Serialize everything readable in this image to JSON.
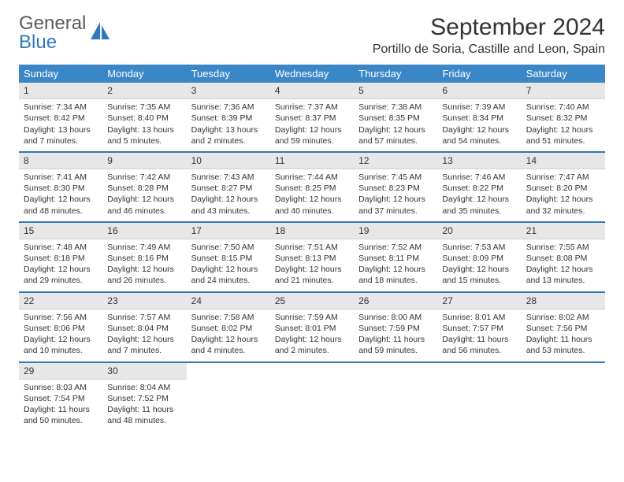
{
  "brand": {
    "name1": "General",
    "name2": "Blue"
  },
  "title": "September 2024",
  "location": "Portillo de Soria, Castille and Leon, Spain",
  "columns": [
    "Sunday",
    "Monday",
    "Tuesday",
    "Wednesday",
    "Thursday",
    "Friday",
    "Saturday"
  ],
  "colors": {
    "header_bg": "#3a87c7",
    "header_fg": "#ffffff",
    "daynum_bg": "#e7e7e7",
    "week_sep": "#2f78bd",
    "text": "#333333",
    "brand_blue": "#2f78bd",
    "brand_gray": "#5a5a5a"
  },
  "weeks": [
    [
      {
        "n": "1",
        "sunrise": "Sunrise: 7:34 AM",
        "sunset": "Sunset: 8:42 PM",
        "daylight": "Daylight: 13 hours and 7 minutes."
      },
      {
        "n": "2",
        "sunrise": "Sunrise: 7:35 AM",
        "sunset": "Sunset: 8:40 PM",
        "daylight": "Daylight: 13 hours and 5 minutes."
      },
      {
        "n": "3",
        "sunrise": "Sunrise: 7:36 AM",
        "sunset": "Sunset: 8:39 PM",
        "daylight": "Daylight: 13 hours and 2 minutes."
      },
      {
        "n": "4",
        "sunrise": "Sunrise: 7:37 AM",
        "sunset": "Sunset: 8:37 PM",
        "daylight": "Daylight: 12 hours and 59 minutes."
      },
      {
        "n": "5",
        "sunrise": "Sunrise: 7:38 AM",
        "sunset": "Sunset: 8:35 PM",
        "daylight": "Daylight: 12 hours and 57 minutes."
      },
      {
        "n": "6",
        "sunrise": "Sunrise: 7:39 AM",
        "sunset": "Sunset: 8:34 PM",
        "daylight": "Daylight: 12 hours and 54 minutes."
      },
      {
        "n": "7",
        "sunrise": "Sunrise: 7:40 AM",
        "sunset": "Sunset: 8:32 PM",
        "daylight": "Daylight: 12 hours and 51 minutes."
      }
    ],
    [
      {
        "n": "8",
        "sunrise": "Sunrise: 7:41 AM",
        "sunset": "Sunset: 8:30 PM",
        "daylight": "Daylight: 12 hours and 48 minutes."
      },
      {
        "n": "9",
        "sunrise": "Sunrise: 7:42 AM",
        "sunset": "Sunset: 8:28 PM",
        "daylight": "Daylight: 12 hours and 46 minutes."
      },
      {
        "n": "10",
        "sunrise": "Sunrise: 7:43 AM",
        "sunset": "Sunset: 8:27 PM",
        "daylight": "Daylight: 12 hours and 43 minutes."
      },
      {
        "n": "11",
        "sunrise": "Sunrise: 7:44 AM",
        "sunset": "Sunset: 8:25 PM",
        "daylight": "Daylight: 12 hours and 40 minutes."
      },
      {
        "n": "12",
        "sunrise": "Sunrise: 7:45 AM",
        "sunset": "Sunset: 8:23 PM",
        "daylight": "Daylight: 12 hours and 37 minutes."
      },
      {
        "n": "13",
        "sunrise": "Sunrise: 7:46 AM",
        "sunset": "Sunset: 8:22 PM",
        "daylight": "Daylight: 12 hours and 35 minutes."
      },
      {
        "n": "14",
        "sunrise": "Sunrise: 7:47 AM",
        "sunset": "Sunset: 8:20 PM",
        "daylight": "Daylight: 12 hours and 32 minutes."
      }
    ],
    [
      {
        "n": "15",
        "sunrise": "Sunrise: 7:48 AM",
        "sunset": "Sunset: 8:18 PM",
        "daylight": "Daylight: 12 hours and 29 minutes."
      },
      {
        "n": "16",
        "sunrise": "Sunrise: 7:49 AM",
        "sunset": "Sunset: 8:16 PM",
        "daylight": "Daylight: 12 hours and 26 minutes."
      },
      {
        "n": "17",
        "sunrise": "Sunrise: 7:50 AM",
        "sunset": "Sunset: 8:15 PM",
        "daylight": "Daylight: 12 hours and 24 minutes."
      },
      {
        "n": "18",
        "sunrise": "Sunrise: 7:51 AM",
        "sunset": "Sunset: 8:13 PM",
        "daylight": "Daylight: 12 hours and 21 minutes."
      },
      {
        "n": "19",
        "sunrise": "Sunrise: 7:52 AM",
        "sunset": "Sunset: 8:11 PM",
        "daylight": "Daylight: 12 hours and 18 minutes."
      },
      {
        "n": "20",
        "sunrise": "Sunrise: 7:53 AM",
        "sunset": "Sunset: 8:09 PM",
        "daylight": "Daylight: 12 hours and 15 minutes."
      },
      {
        "n": "21",
        "sunrise": "Sunrise: 7:55 AM",
        "sunset": "Sunset: 8:08 PM",
        "daylight": "Daylight: 12 hours and 13 minutes."
      }
    ],
    [
      {
        "n": "22",
        "sunrise": "Sunrise: 7:56 AM",
        "sunset": "Sunset: 8:06 PM",
        "daylight": "Daylight: 12 hours and 10 minutes."
      },
      {
        "n": "23",
        "sunrise": "Sunrise: 7:57 AM",
        "sunset": "Sunset: 8:04 PM",
        "daylight": "Daylight: 12 hours and 7 minutes."
      },
      {
        "n": "24",
        "sunrise": "Sunrise: 7:58 AM",
        "sunset": "Sunset: 8:02 PM",
        "daylight": "Daylight: 12 hours and 4 minutes."
      },
      {
        "n": "25",
        "sunrise": "Sunrise: 7:59 AM",
        "sunset": "Sunset: 8:01 PM",
        "daylight": "Daylight: 12 hours and 2 minutes."
      },
      {
        "n": "26",
        "sunrise": "Sunrise: 8:00 AM",
        "sunset": "Sunset: 7:59 PM",
        "daylight": "Daylight: 11 hours and 59 minutes."
      },
      {
        "n": "27",
        "sunrise": "Sunrise: 8:01 AM",
        "sunset": "Sunset: 7:57 PM",
        "daylight": "Daylight: 11 hours and 56 minutes."
      },
      {
        "n": "28",
        "sunrise": "Sunrise: 8:02 AM",
        "sunset": "Sunset: 7:56 PM",
        "daylight": "Daylight: 11 hours and 53 minutes."
      }
    ],
    [
      {
        "n": "29",
        "sunrise": "Sunrise: 8:03 AM",
        "sunset": "Sunset: 7:54 PM",
        "daylight": "Daylight: 11 hours and 50 minutes."
      },
      {
        "n": "30",
        "sunrise": "Sunrise: 8:04 AM",
        "sunset": "Sunset: 7:52 PM",
        "daylight": "Daylight: 11 hours and 48 minutes."
      },
      null,
      null,
      null,
      null,
      null
    ]
  ]
}
